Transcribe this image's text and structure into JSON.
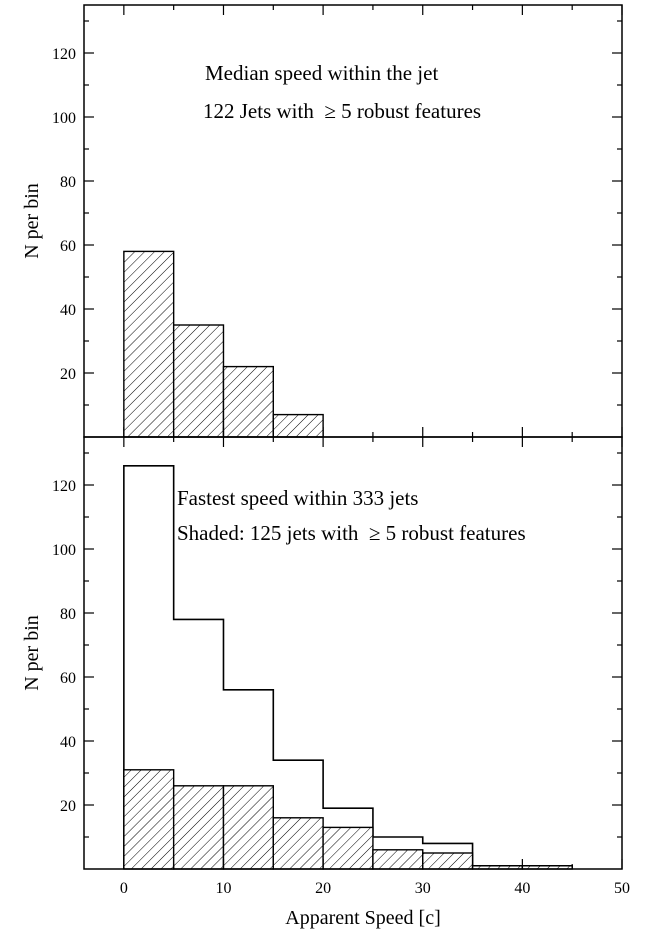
{
  "chart_data": [
    {
      "type": "bar",
      "bin_edges": [
        0,
        5,
        10,
        15,
        20,
        25,
        30,
        35,
        40,
        45,
        50
      ],
      "series": [
        {
          "name": "Median speed within the jet",
          "style": "hatched",
          "values": [
            58,
            35,
            22,
            7,
            0,
            0,
            0,
            0,
            0,
            0
          ]
        }
      ],
      "annotations": [
        "Median speed within the jet",
        "122 Jets with  ≥ 5 robust features"
      ],
      "xlabel": "",
      "ylabel": "N per bin",
      "xlim": [
        -4,
        50
      ],
      "ylim": [
        0,
        135
      ],
      "yticks": [
        20,
        40,
        60,
        80,
        100,
        120
      ],
      "xticks": [
        0,
        10,
        20,
        30,
        40,
        50
      ],
      "grid": false
    },
    {
      "type": "bar",
      "bin_edges": [
        0,
        5,
        10,
        15,
        20,
        25,
        30,
        35,
        40,
        45,
        50
      ],
      "series": [
        {
          "name": "Fastest speed within 333 jets",
          "style": "outline",
          "values": [
            126,
            78,
            56,
            34,
            19,
            10,
            8,
            1,
            1,
            0
          ]
        },
        {
          "name": "Shaded: 125 jets with  ≥ 5 robust features",
          "style": "hatched",
          "values": [
            31,
            26,
            26,
            16,
            13,
            6,
            5,
            1,
            1,
            0
          ]
        }
      ],
      "annotations": [
        "Fastest speed within 333 jets",
        "Shaded: 125 jets with  ≥ 5 robust features"
      ],
      "xlabel": "Apparent Speed [c]",
      "ylabel": "N per bin",
      "xlim": [
        -4,
        50
      ],
      "ylim": [
        0,
        135
      ],
      "yticks": [
        20,
        40,
        60,
        80,
        100,
        120
      ],
      "xticks": [
        0,
        10,
        20,
        30,
        40,
        50
      ],
      "xtick_labels": [
        "0",
        "10",
        "20",
        "30",
        "40",
        "50"
      ],
      "grid": false
    }
  ],
  "colors": {
    "ink": "#000000",
    "background": "#ffffff"
  }
}
